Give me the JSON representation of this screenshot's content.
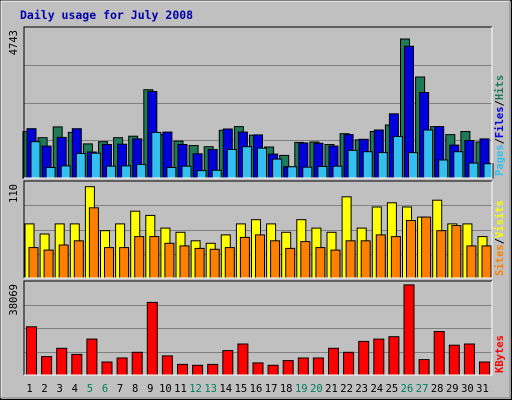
{
  "chart_data": [
    {
      "type": "bar",
      "title": "Daily usage for July 2008",
      "categories": [
        "1",
        "2",
        "3",
        "4",
        "5",
        "6",
        "7",
        "8",
        "9",
        "10",
        "11",
        "12",
        "13",
        "14",
        "15",
        "16",
        "17",
        "18",
        "19",
        "20",
        "21",
        "22",
        "23",
        "24",
        "25",
        "26",
        "27",
        "28",
        "29",
        "30",
        "31"
      ],
      "weekend_days": [
        "5",
        "6",
        "12",
        "13",
        "19",
        "20",
        "26",
        "27"
      ],
      "y_max_label": "4743",
      "ylim": [
        0,
        4743
      ],
      "grid": true,
      "series": [
        {
          "name": "Hits",
          "color": "#1f7a5a",
          "values": [
            1500,
            1300,
            1650,
            1470,
            1100,
            1170,
            1300,
            1350,
            2850,
            1400,
            1190,
            1050,
            1010,
            1540,
            1660,
            1380,
            1000,
            730,
            1150,
            1160,
            1080,
            1430,
            1230,
            1500,
            1710,
            4485,
            3260,
            1660,
            1400,
            1500,
            1160
          ]
        },
        {
          "name": "Files",
          "color": "#0000dd",
          "values": [
            1590,
            1030,
            1310,
            1590,
            840,
            1080,
            1090,
            1260,
            2790,
            1480,
            1080,
            780,
            920,
            1580,
            1480,
            1390,
            770,
            360,
            1130,
            1120,
            1030,
            1400,
            1250,
            1550,
            2070,
            4250,
            2760,
            1660,
            1060,
            1210,
            1260
          ]
        },
        {
          "name": "Pages",
          "color": "#33c0f0",
          "values": [
            1170,
            340,
            390,
            790,
            800,
            380,
            390,
            440,
            1470,
            340,
            380,
            240,
            250,
            920,
            1010,
            960,
            610,
            360,
            350,
            370,
            380,
            890,
            850,
            820,
            1340,
            820,
            1550,
            580,
            850,
            480,
            460
          ]
        }
      ],
      "legend": [
        "Pages",
        "/",
        "Files",
        "/",
        "Hits"
      ],
      "legend_placement": "right"
    },
    {
      "type": "bar",
      "categories": [
        "1",
        "2",
        "3",
        "4",
        "5",
        "6",
        "7",
        "8",
        "9",
        "10",
        "11",
        "12",
        "13",
        "14",
        "15",
        "16",
        "17",
        "18",
        "19",
        "20",
        "21",
        "22",
        "23",
        "24",
        "25",
        "26",
        "27",
        "28",
        "29",
        "30",
        "31"
      ],
      "y_max_label": "110",
      "ylim": [
        0,
        110
      ],
      "grid": true,
      "series": [
        {
          "name": "Visits",
          "color": "#ffff00",
          "values": [
            64,
            52,
            64,
            64,
            108,
            56,
            64,
            79,
            74,
            59,
            54,
            44,
            41,
            51,
            64,
            69,
            64,
            54,
            69,
            59,
            54,
            96,
            59,
            84,
            89,
            84,
            72,
            92,
            64,
            64,
            49
          ]
        },
        {
          "name": "Sites",
          "color": "#ff8000",
          "values": [
            36,
            33,
            39,
            44,
            83,
            36,
            36,
            49,
            49,
            41,
            38,
            35,
            34,
            36,
            48,
            51,
            44,
            35,
            43,
            36,
            33,
            44,
            44,
            51,
            49,
            68,
            72,
            56,
            62,
            38,
            38
          ]
        }
      ],
      "legend": [
        "Sites",
        "/",
        "Visits"
      ],
      "legend_placement": "right"
    },
    {
      "type": "bar",
      "categories": [
        "1",
        "2",
        "3",
        "4",
        "5",
        "6",
        "7",
        "8",
        "9",
        "10",
        "11",
        "12",
        "13",
        "14",
        "15",
        "16",
        "17",
        "18",
        "19",
        "20",
        "21",
        "22",
        "23",
        "24",
        "25",
        "26",
        "27",
        "28",
        "29",
        "30",
        "31"
      ],
      "y_max_label": "38069",
      "ylim": [
        0,
        38069
      ],
      "grid": true,
      "series": [
        {
          "name": "KBytes",
          "color": "#ff0000",
          "values": [
            20400,
            7800,
            11300,
            8700,
            15200,
            5500,
            7200,
            9600,
            30700,
            8100,
            4500,
            4100,
            4500,
            10300,
            13100,
            5100,
            4100,
            6100,
            7200,
            7200,
            11300,
            9600,
            14200,
            15200,
            16200,
            38100,
            6500,
            18400,
            12600,
            13100,
            5500
          ]
        }
      ],
      "legend": [
        "KBytes"
      ],
      "legend_placement": "right"
    }
  ]
}
